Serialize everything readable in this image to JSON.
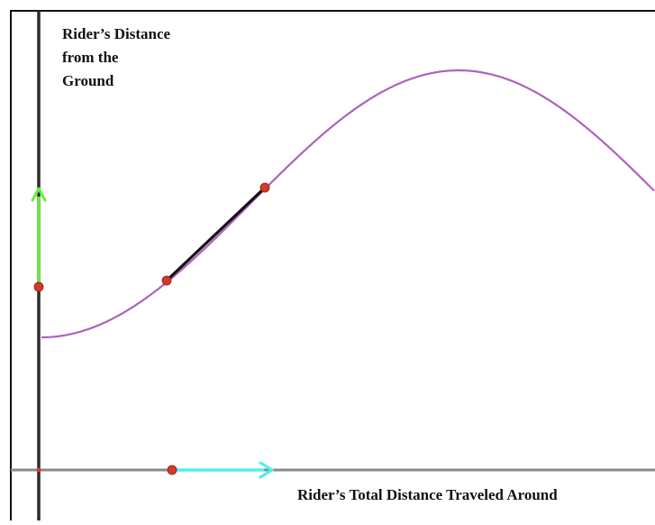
{
  "diagram": {
    "y_axis_label_lines": [
      "Rider’s Distance",
      "from the",
      "Ground"
    ],
    "x_axis_label": "Rider’s Total Distance Traveled Around"
  },
  "colors": {
    "curve": "#b060c0",
    "vertical_arrow": "#66ee44",
    "horizontal_arrow": "#55eef0",
    "secant_segment": "#111111",
    "points": "#d23a2a",
    "y_axis": "#2a2a2a",
    "x_axis": "#8a8a8a",
    "frame": "#111111"
  }
}
